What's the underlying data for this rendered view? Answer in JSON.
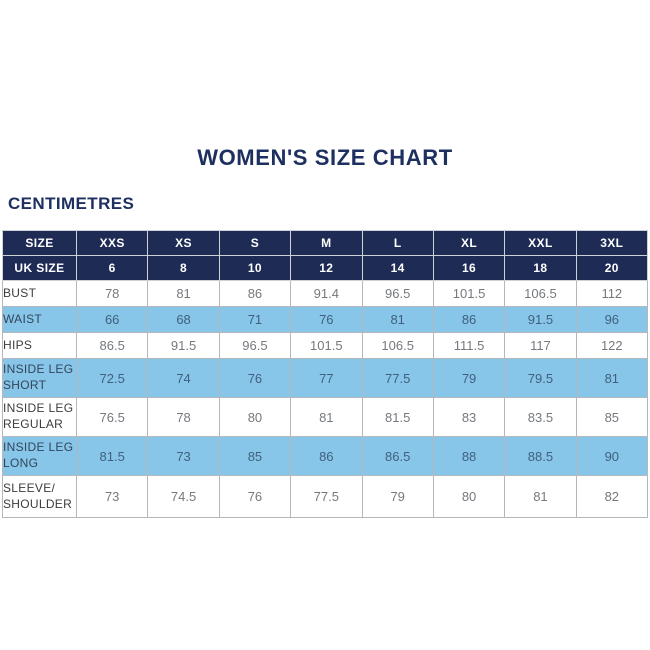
{
  "title": "WOMEN'S SIZE CHART",
  "units_label": "CENTIMETRES",
  "colors": {
    "navy": "#1d2b55",
    "light_blue": "#87c6e8",
    "title_text": "#1e3060",
    "value_text": "#75797e",
    "value_text_on_blue": "#41607f",
    "grid_border": "#b5b8bb"
  },
  "table": {
    "size_row": {
      "label": "SIZE",
      "values": [
        "XXS",
        "XS",
        "S",
        "M",
        "L",
        "XL",
        "XXL",
        "3XL"
      ]
    },
    "uk_size_row": {
      "label": "UK SIZE",
      "values": [
        "6",
        "8",
        "10",
        "12",
        "14",
        "16",
        "18",
        "20"
      ]
    },
    "measurement_rows": [
      {
        "label": "BUST",
        "shaded": false,
        "values": [
          "78",
          "81",
          "86",
          "91.4",
          "96.5",
          "101.5",
          "106.5",
          "112"
        ]
      },
      {
        "label": "WAIST",
        "shaded": true,
        "values": [
          "66",
          "68",
          "71",
          "76",
          "81",
          "86",
          "91.5",
          "96"
        ]
      },
      {
        "label": "HIPS",
        "shaded": false,
        "values": [
          "86.5",
          "91.5",
          "96.5",
          "101.5",
          "106.5",
          "111.5",
          "117",
          "122"
        ]
      },
      {
        "label": "INSIDE LEG\nSHORT",
        "shaded": true,
        "values": [
          "72.5",
          "74",
          "76",
          "77",
          "77.5",
          "79",
          "79.5",
          "81"
        ]
      },
      {
        "label": "INSIDE LEG\nREGULAR",
        "shaded": false,
        "values": [
          "76.5",
          "78",
          "80",
          "81",
          "81.5",
          "83",
          "83.5",
          "85"
        ]
      },
      {
        "label": "INSIDE LEG\nLONG",
        "shaded": true,
        "values": [
          "81.5",
          "73",
          "85",
          "86",
          "86.5",
          "88",
          "88.5",
          "90"
        ]
      },
      {
        "label": "SLEEVE/\nSHOULDER",
        "shaded": false,
        "values": [
          "73",
          "74.5",
          "76",
          "77.5",
          "79",
          "80",
          "81",
          "82"
        ]
      }
    ]
  },
  "chart_data": {
    "type": "table",
    "title": "WOMEN'S SIZE CHART",
    "units": "CENTIMETRES",
    "columns": [
      "SIZE",
      "XXS",
      "XS",
      "S",
      "M",
      "L",
      "XL",
      "XXL",
      "3XL"
    ],
    "rows": [
      [
        "UK SIZE",
        6,
        8,
        10,
        12,
        14,
        16,
        18,
        20
      ],
      [
        "BUST",
        78,
        81,
        86,
        91.4,
        96.5,
        101.5,
        106.5,
        112
      ],
      [
        "WAIST",
        66,
        68,
        71,
        76,
        81,
        86,
        91.5,
        96
      ],
      [
        "HIPS",
        86.5,
        91.5,
        96.5,
        101.5,
        106.5,
        111.5,
        117,
        122
      ],
      [
        "INSIDE LEG SHORT",
        72.5,
        74,
        76,
        77,
        77.5,
        79,
        79.5,
        81
      ],
      [
        "INSIDE LEG REGULAR",
        76.5,
        78,
        80,
        81,
        81.5,
        83,
        83.5,
        85
      ],
      [
        "INSIDE LEG LONG",
        81.5,
        73,
        85,
        86,
        86.5,
        88,
        88.5,
        90
      ],
      [
        "SLEEVE/SHOULDER",
        73,
        74.5,
        76,
        77.5,
        79,
        80,
        81,
        82
      ]
    ],
    "layout": {
      "shaded_row_color": "#87c6e8",
      "header_color": "#1d2b55",
      "shaded_rows": [
        "WAIST",
        "INSIDE LEG SHORT",
        "INSIDE LEG LONG"
      ]
    }
  }
}
